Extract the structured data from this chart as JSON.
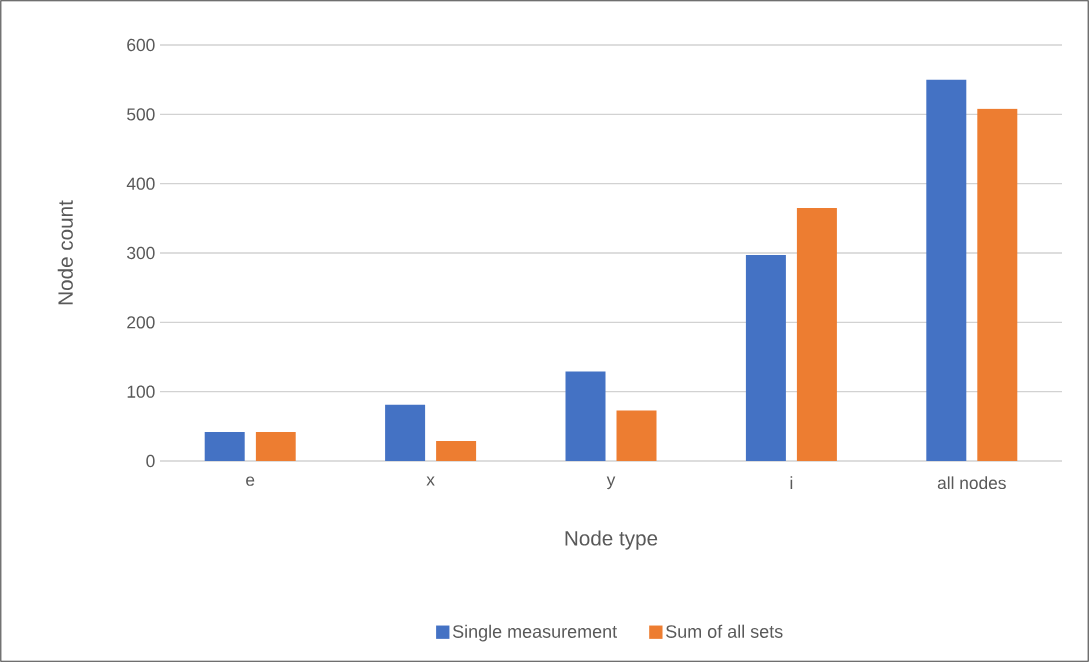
{
  "chart_data": {
    "type": "bar",
    "xlabel": "Node type",
    "ylabel": "Node count",
    "categories": [
      "e",
      "x",
      "y",
      "i",
      "all nodes"
    ],
    "series": [
      {
        "name": "Single measurement",
        "color": "#4472c4",
        "values": [
          42,
          81,
          129,
          297,
          550
        ]
      },
      {
        "name": "Sum of all sets",
        "color": "#ed7d31",
        "values": [
          42,
          29,
          73,
          365,
          508
        ]
      }
    ],
    "ylim": [
      0,
      600
    ],
    "yticks": [
      0,
      100,
      200,
      300,
      400,
      500,
      600
    ],
    "grid": "y",
    "legend": "bottom"
  }
}
